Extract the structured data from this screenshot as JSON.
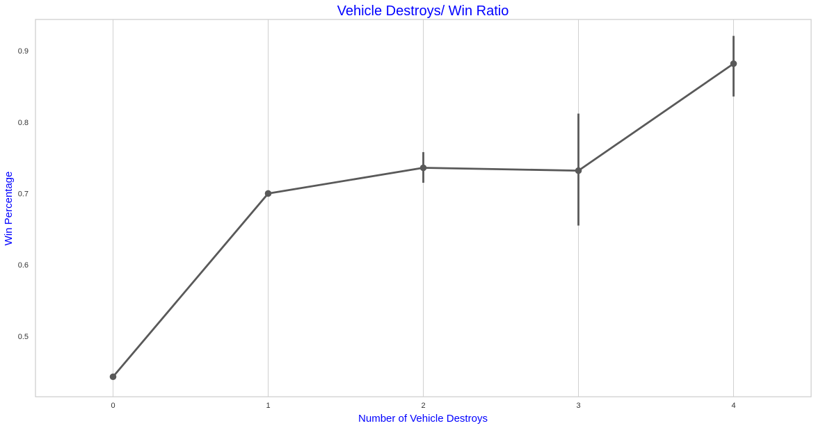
{
  "chart_data": {
    "type": "line",
    "title": "Vehicle Destroys/ Win Ratio",
    "xlabel": "Number of Vehicle Destroys",
    "ylabel": "Win Percentage",
    "x": [
      0,
      1,
      2,
      3,
      4
    ],
    "x_tick_labels": [
      "0",
      "1",
      "2",
      "3",
      "4"
    ],
    "y_ticks": [
      0.5,
      0.6,
      0.7,
      0.8,
      0.9
    ],
    "y_tick_labels": [
      "0.5",
      "0.6",
      "0.7",
      "0.8",
      "0.9"
    ],
    "xlim": [
      -0.5,
      4.5
    ],
    "ylim": [
      0.415,
      0.944
    ],
    "grid": "vertical",
    "series": [
      {
        "values": [
          0.443,
          0.7,
          0.736,
          0.732,
          0.882
        ],
        "ci_low": [
          0.443,
          0.7,
          0.715,
          0.655,
          0.836
        ],
        "ci_high": [
          0.443,
          0.7,
          0.758,
          0.812,
          0.921
        ],
        "color": "#595959"
      }
    ]
  }
}
